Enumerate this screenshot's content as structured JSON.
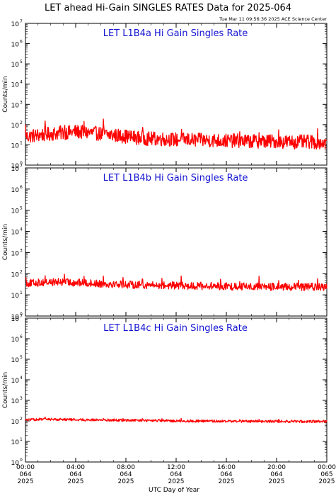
{
  "header": {
    "title": "LET ahead Hi-Gain SINGLES RATES Data for 2025-064",
    "timestamp": "Tue Mar 11 09:56:36 2025 ACE Science Center"
  },
  "chart_data": [
    {
      "type": "line",
      "title": "LET L1B4a Hi Gain Singles Rate",
      "ylabel": "Counts/min",
      "yscale": "log",
      "ylim": [
        1,
        10000000
      ],
      "xlim": [
        0,
        24
      ],
      "xunit": "hours of day 064",
      "color": "#ff0000",
      "series": [
        {
          "x": [
            0,
            0.5,
            1,
            1.5,
            2,
            2.5,
            3,
            3.5,
            4,
            4.5,
            5,
            5.5,
            6,
            6.5,
            7,
            7.5,
            8,
            8.5,
            9,
            9.5,
            10,
            10.5,
            11,
            11.5,
            12,
            12.5,
            13,
            13.5,
            14,
            14.5,
            15,
            15.5,
            16,
            16.5,
            17,
            17.5,
            18,
            18.5,
            19,
            19.5,
            20,
            20.5,
            21,
            21.5,
            22,
            22.5,
            23,
            23.5,
            24
          ],
          "values": [
            25,
            28,
            30,
            32,
            35,
            38,
            40,
            42,
            45,
            42,
            40,
            38,
            35,
            33,
            30,
            28,
            26,
            24,
            22,
            21,
            20,
            20,
            19,
            19,
            18,
            18,
            18,
            17,
            17,
            17,
            17,
            16,
            16,
            16,
            16,
            15,
            15,
            15,
            15,
            15,
            15,
            14,
            14,
            14,
            14,
            14,
            14,
            13,
            13
          ]
        }
      ]
    },
    {
      "type": "line",
      "title": "LET L1B4b Hi Gain Singles Rate",
      "ylabel": "Counts/min",
      "yscale": "log",
      "ylim": [
        1,
        10000000
      ],
      "xlim": [
        0,
        24
      ],
      "xunit": "hours of day 064",
      "color": "#ff0000",
      "series": [
        {
          "x": [
            0,
            0.5,
            1,
            1.5,
            2,
            2.5,
            3,
            3.5,
            4,
            4.5,
            5,
            5.5,
            6,
            6.5,
            7,
            7.5,
            8,
            8.5,
            9,
            9.5,
            10,
            10.5,
            11,
            11.5,
            12,
            12.5,
            13,
            13.5,
            14,
            14.5,
            15,
            15.5,
            16,
            16.5,
            17,
            17.5,
            18,
            18.5,
            19,
            19.5,
            20,
            20.5,
            21,
            21.5,
            22,
            22.5,
            23,
            23.5,
            24
          ],
          "values": [
            35,
            36,
            38,
            38,
            40,
            40,
            40,
            39,
            38,
            37,
            36,
            35,
            34,
            33,
            33,
            32,
            31,
            30,
            30,
            29,
            29,
            28,
            28,
            28,
            27,
            27,
            27,
            26,
            26,
            26,
            26,
            26,
            25,
            25,
            25,
            25,
            25,
            25,
            25,
            24,
            24,
            24,
            24,
            24,
            24,
            24,
            24,
            23,
            23
          ]
        }
      ]
    },
    {
      "type": "line",
      "title": "LET L1B4c Hi Gain Singles Rate",
      "ylabel": "Counts/min",
      "yscale": "log",
      "ylim": [
        1,
        10000000
      ],
      "xlim": [
        0,
        24
      ],
      "xunit": "hours of day 064",
      "color": "#ff0000",
      "series": [
        {
          "x": [
            0,
            0.5,
            1,
            1.5,
            2,
            2.5,
            3,
            3.5,
            4,
            4.5,
            5,
            5.5,
            6,
            6.5,
            7,
            7.5,
            8,
            8.5,
            9,
            9.5,
            10,
            10.5,
            11,
            11.5,
            12,
            12.5,
            13,
            13.5,
            14,
            14.5,
            15,
            15.5,
            16,
            16.5,
            17,
            17.5,
            18,
            18.5,
            19,
            19.5,
            20,
            20.5,
            21,
            21.5,
            22,
            22.5,
            23,
            23.5,
            24
          ],
          "values": [
            110,
            115,
            118,
            120,
            120,
            118,
            118,
            116,
            115,
            114,
            113,
            112,
            111,
            110,
            110,
            108,
            107,
            106,
            105,
            104,
            103,
            102,
            101,
            100,
            100,
            99,
            99,
            98,
            98,
            98,
            97,
            97,
            97,
            96,
            96,
            96,
            96,
            96,
            95,
            95,
            95,
            95,
            95,
            95,
            95,
            95,
            95,
            95,
            95
          ]
        }
      ]
    }
  ],
  "axes": {
    "yticks": [
      {
        "base": "10",
        "exp": "0"
      },
      {
        "base": "10",
        "exp": "1"
      },
      {
        "base": "10",
        "exp": "2"
      },
      {
        "base": "10",
        "exp": "3"
      },
      {
        "base": "10",
        "exp": "4"
      },
      {
        "base": "10",
        "exp": "5"
      },
      {
        "base": "10",
        "exp": "6"
      },
      {
        "base": "10",
        "exp": "7"
      }
    ],
    "xticks": [
      {
        "time": "00:00",
        "doy": "064",
        "year": "2025"
      },
      {
        "time": "04:00",
        "doy": "064",
        "year": "2025"
      },
      {
        "time": "08:00",
        "doy": "064",
        "year": "2025"
      },
      {
        "time": "12:00",
        "doy": "064",
        "year": "2025"
      },
      {
        "time": "16:00",
        "doy": "064",
        "year": "2025"
      },
      {
        "time": "20:00",
        "doy": "064",
        "year": "2025"
      },
      {
        "time": "00:00",
        "doy": "065",
        "year": "2025"
      }
    ],
    "xlabel": "UTC Day of Year"
  }
}
